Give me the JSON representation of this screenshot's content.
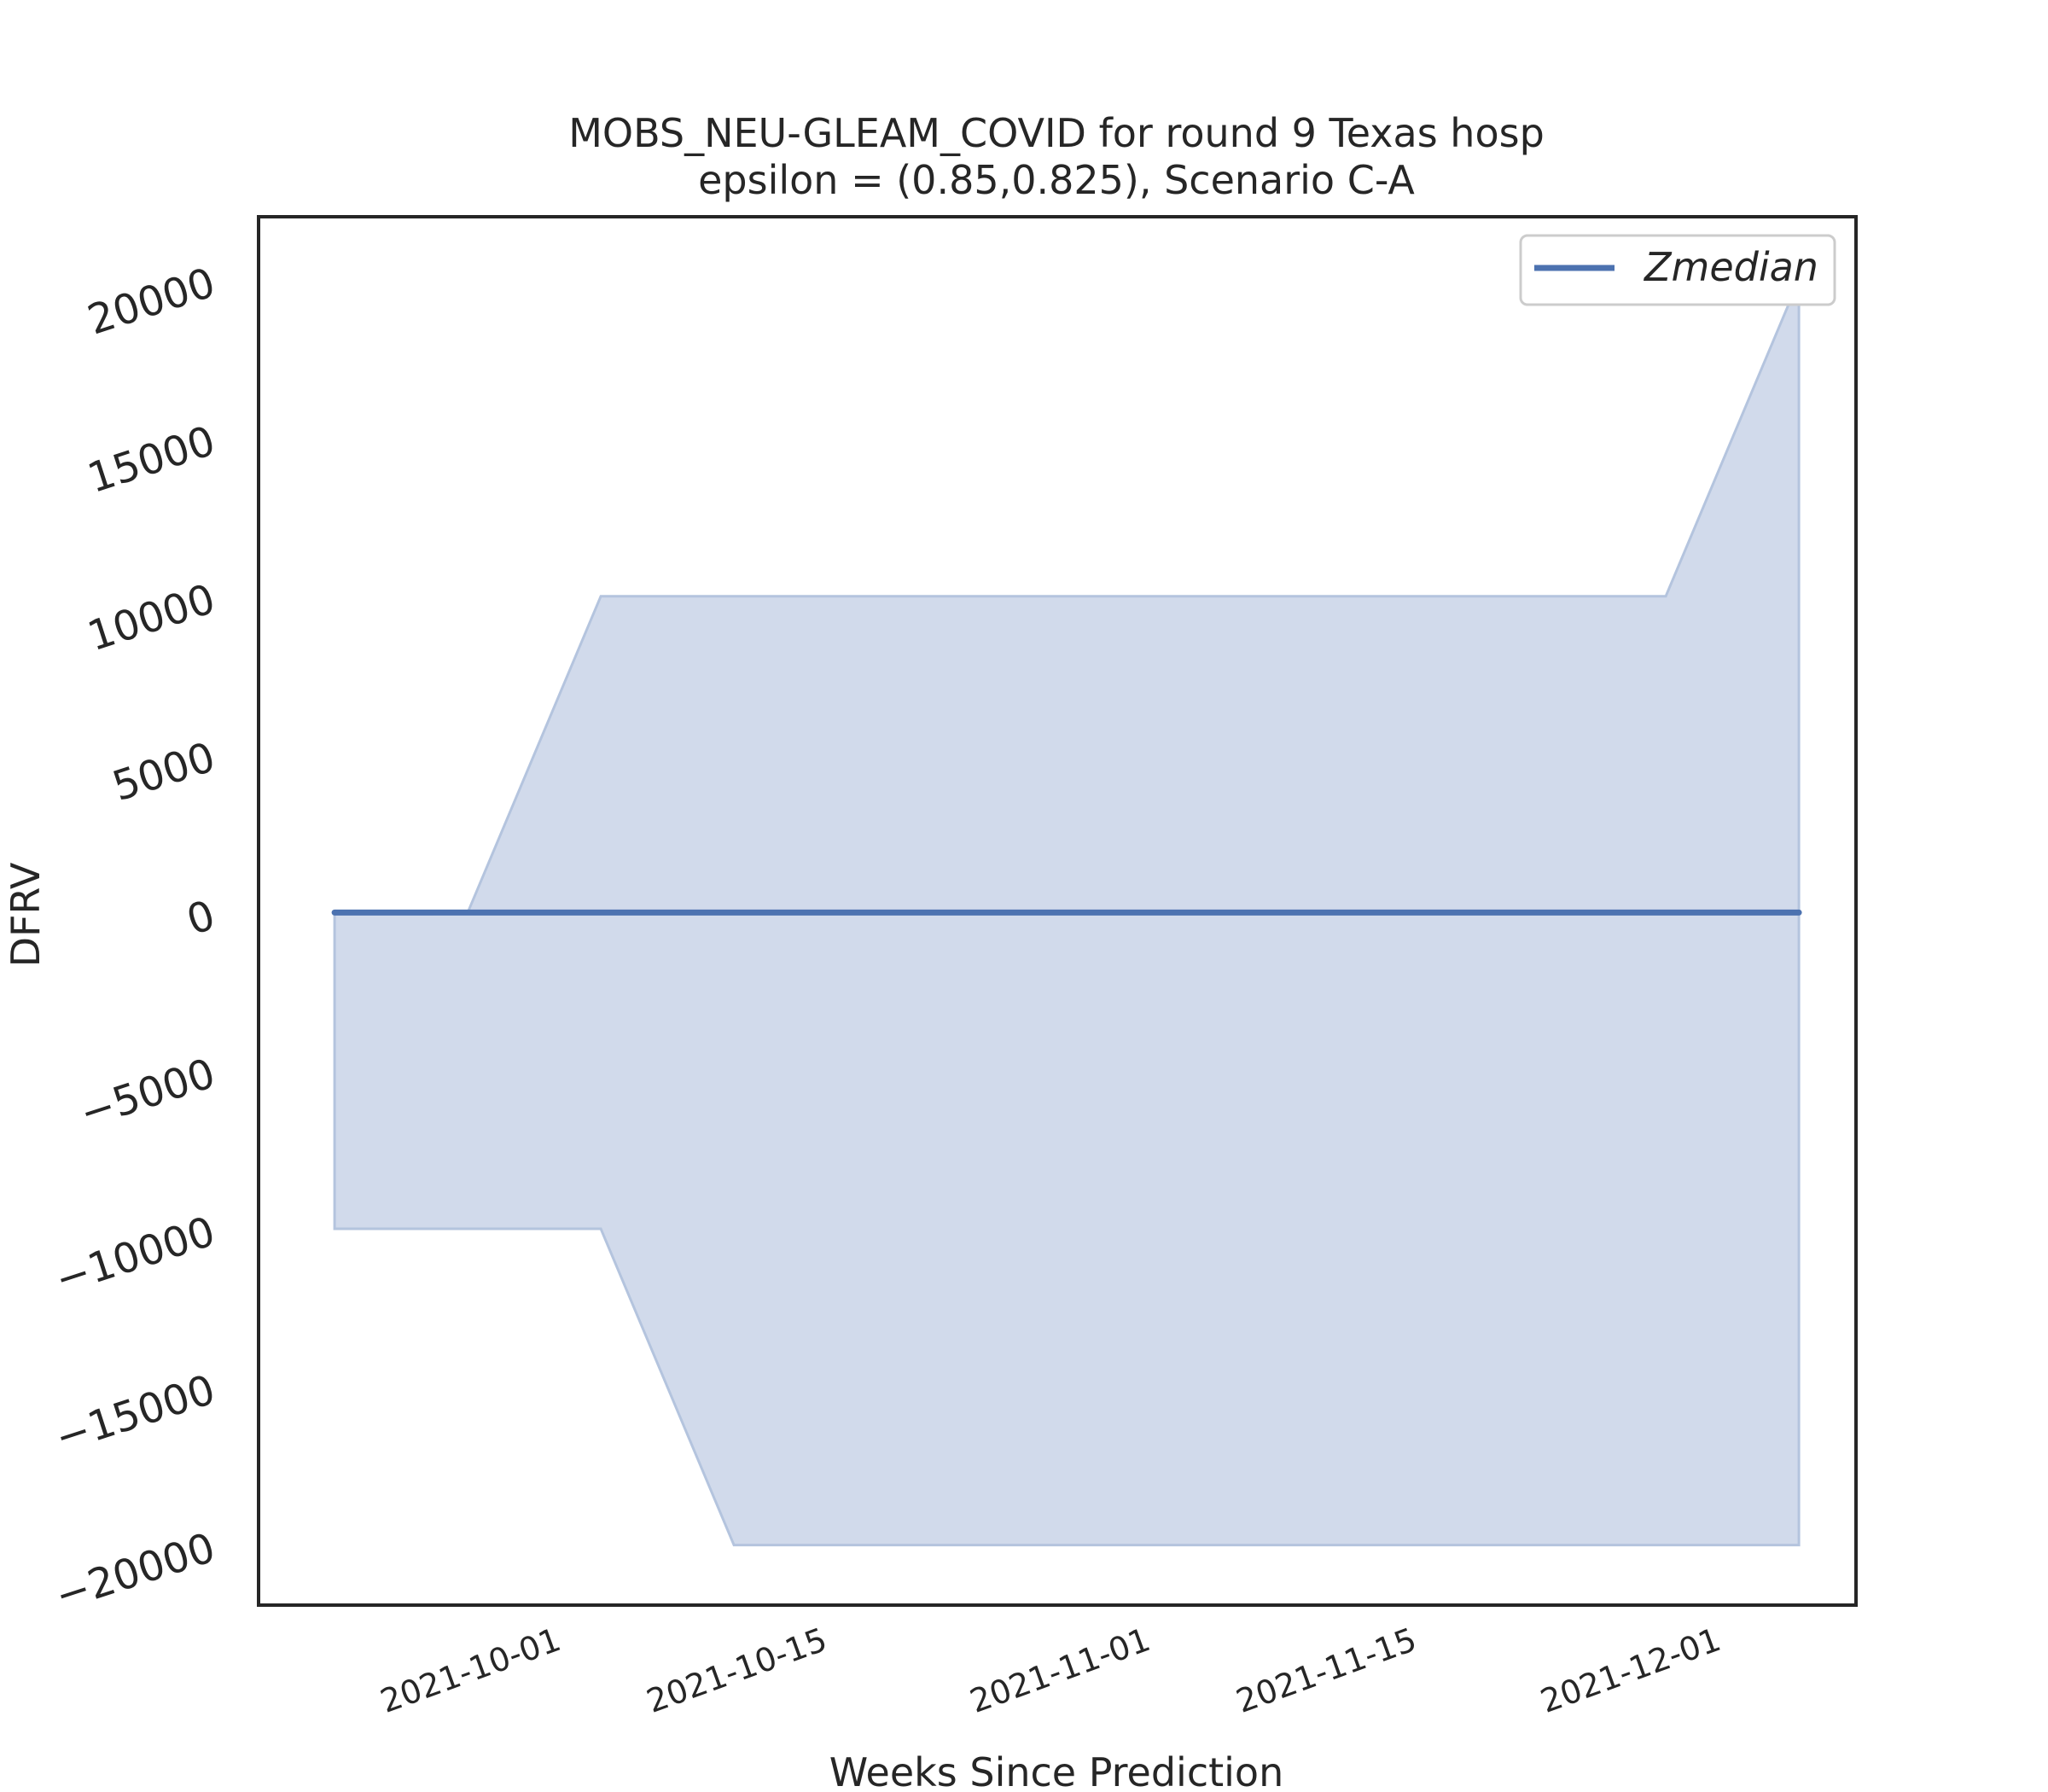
{
  "chart_data": {
    "type": "area",
    "title": "MOBS_NEU-GLEAM_COVID for round 9 Texas  hosp",
    "subtitle": "epsilon = (0.85,0.825), Scenario C-A",
    "xlabel": "Weeks Since Prediction",
    "ylabel": "DFRV",
    "x": [
      "2021-09-19",
      "2021-09-26",
      "2021-10-03",
      "2021-10-10",
      "2021-10-17",
      "2021-10-24",
      "2021-10-31",
      "2021-11-07",
      "2021-11-14",
      "2021-11-21",
      "2021-11-28",
      "2021-12-05"
    ],
    "xlim": [
      "2021-09-15",
      "2021-12-08"
    ],
    "ylim": [
      -21900,
      22000
    ],
    "yticks": [
      20000,
      15000,
      10000,
      5000,
      0,
      -5000,
      -10000,
      -15000,
      -20000
    ],
    "ytick_labels": [
      "20000",
      "15000",
      "10000",
      "5000",
      "0",
      "−5000",
      "−10000",
      "−15000",
      "−20000"
    ],
    "xticks": [
      "2021-10-01",
      "2021-10-15",
      "2021-11-01",
      "2021-11-15",
      "2021-12-01"
    ],
    "series": [
      {
        "name": "Zmedian",
        "values": [
          0,
          0,
          0,
          0,
          0,
          0,
          0,
          0,
          0,
          0,
          0,
          0
        ],
        "color": "#4c72b0"
      }
    ],
    "band": {
      "upper": [
        0,
        0,
        10000,
        10000,
        10000,
        10000,
        10000,
        10000,
        10000,
        10000,
        10000,
        20000
      ],
      "lower": [
        -10000,
        -10000,
        -10000,
        -20000,
        -20000,
        -20000,
        -20000,
        -20000,
        -20000,
        -20000,
        -20000,
        -20000
      ],
      "fill_color": "#d1daeb",
      "edge_color": "#b4c4de"
    },
    "grid": false,
    "legend_position": "top-right"
  }
}
